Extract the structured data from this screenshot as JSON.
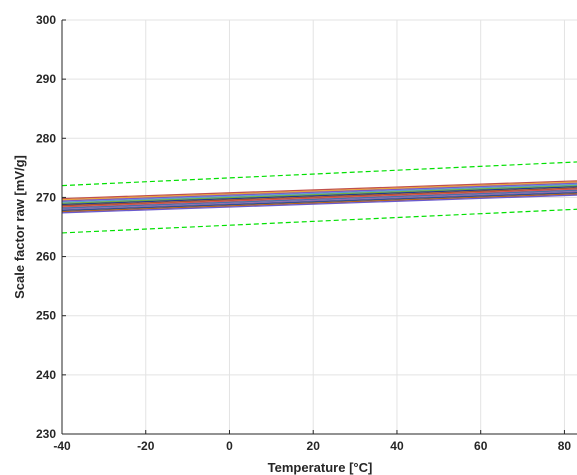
{
  "chart_data": {
    "type": "line",
    "title": "",
    "xlabel": "Temperature [°C]",
    "ylabel": "Scale factor raw [mV/g]",
    "xlim": [
      -40,
      83
    ],
    "ylim": [
      230,
      300
    ],
    "xticks": [
      -40,
      -20,
      0,
      20,
      40,
      60,
      80
    ],
    "yticks": [
      230,
      240,
      250,
      260,
      270,
      280,
      290,
      300
    ],
    "grid": true,
    "legend": "none",
    "limit_lines": [
      {
        "style": "dashed",
        "color": "#00e000",
        "x": [
          -40,
          83
        ],
        "y": [
          272.0,
          276.0
        ]
      },
      {
        "style": "dashed",
        "color": "#00e000",
        "x": [
          -40,
          83
        ],
        "y": [
          264.0,
          268.0
        ]
      }
    ],
    "series": [
      {
        "color": "#c0504d",
        "x": [
          -40,
          83
        ],
        "y": [
          269.8,
          272.8
        ]
      },
      {
        "color": "#e8a33c",
        "x": [
          -40,
          83
        ],
        "y": [
          269.6,
          272.6
        ]
      },
      {
        "color": "#7e57c2",
        "x": [
          -40,
          83
        ],
        "y": [
          269.4,
          272.4
        ]
      },
      {
        "color": "#5a9bd5",
        "x": [
          -40,
          83
        ],
        "y": [
          269.2,
          272.2
        ]
      },
      {
        "color": "#70ad47",
        "x": [
          -40,
          83
        ],
        "y": [
          269.0,
          272.0
        ]
      },
      {
        "color": "#1f3b8c",
        "x": [
          -40,
          83
        ],
        "y": [
          268.8,
          271.8
        ]
      },
      {
        "color": "#a0522d",
        "x": [
          -40,
          83
        ],
        "y": [
          268.6,
          271.6
        ]
      },
      {
        "color": "#d9534f",
        "x": [
          -40,
          83
        ],
        "y": [
          268.4,
          271.4
        ]
      },
      {
        "color": "#4b6fa5",
        "x": [
          -40,
          83
        ],
        "y": [
          268.2,
          271.2
        ]
      },
      {
        "color": "#8c6bb1",
        "x": [
          -40,
          83
        ],
        "y": [
          268.0,
          271.0
        ]
      },
      {
        "color": "#2f4f8f",
        "x": [
          -40,
          83
        ],
        "y": [
          267.8,
          270.8
        ]
      },
      {
        "color": "#b5651d",
        "x": [
          -40,
          83
        ],
        "y": [
          267.6,
          270.6
        ]
      },
      {
        "color": "#6a5acd",
        "x": [
          -40,
          83
        ],
        "y": [
          267.4,
          270.4
        ]
      }
    ]
  }
}
